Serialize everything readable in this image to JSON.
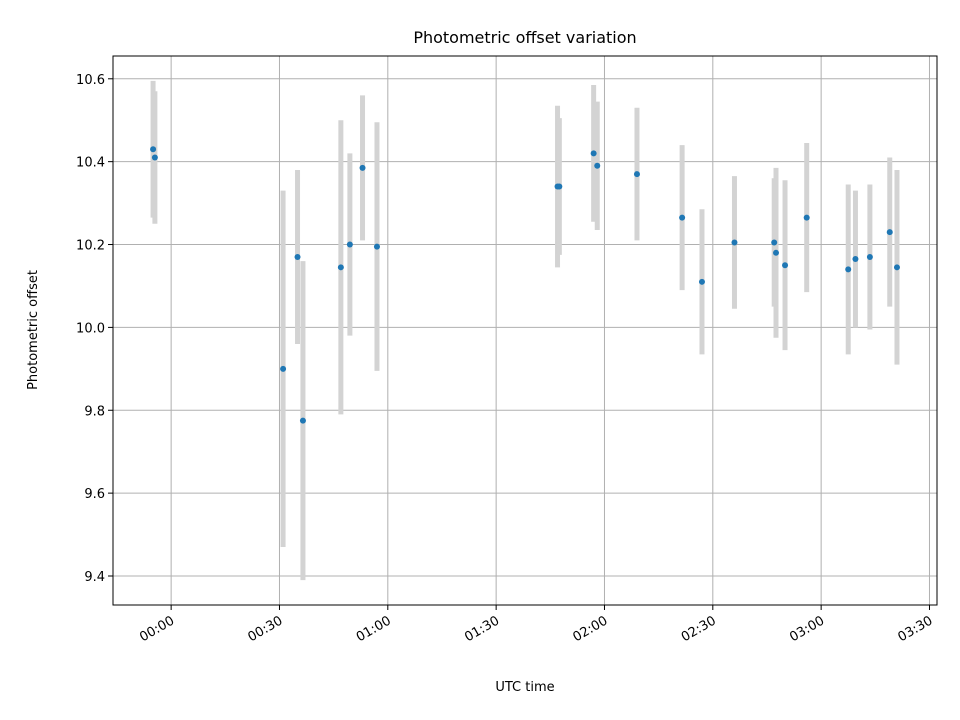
{
  "chart_data": {
    "type": "scatter",
    "title": "Photometric offset variation",
    "xlabel": "UTC time",
    "ylabel": "Photometric offset",
    "x_ticks": [
      "00:00",
      "00:30",
      "01:00",
      "01:30",
      "02:00",
      "02:30",
      "03:00",
      "03:30"
    ],
    "y_ticks": [
      "9.4",
      "9.6",
      "9.8",
      "10.0",
      "10.2",
      "10.4",
      "10.6"
    ],
    "y_tick_values": [
      9.4,
      9.6,
      9.8,
      10.0,
      10.2,
      10.4,
      10.6
    ],
    "xlim": [
      "23:43:54",
      "03:32:05"
    ],
    "ylim": [
      9.33,
      10.655
    ],
    "grid": true,
    "colors": {
      "point": "#1f77b4",
      "errorbar": "#d3d3d3",
      "grid": "#b0b0b0"
    },
    "points": [
      {
        "time": "23:55:00",
        "y": 10.43,
        "yerr": 0.165
      },
      {
        "time": "23:55:30",
        "y": 10.41,
        "yerr": 0.16
      },
      {
        "time": "00:31:00",
        "y": 9.9,
        "yerr": 0.43
      },
      {
        "time": "00:35:00",
        "y": 10.17,
        "yerr": 0.21
      },
      {
        "time": "00:36:30",
        "y": 9.775,
        "yerr": 0.385
      },
      {
        "time": "00:47:00",
        "y": 10.145,
        "yerr": 0.355
      },
      {
        "time": "00:49:30",
        "y": 10.2,
        "yerr": 0.22
      },
      {
        "time": "00:53:00",
        "y": 10.385,
        "yerr": 0.175
      },
      {
        "time": "00:57:00",
        "y": 10.195,
        "yerr": 0.3
      },
      {
        "time": "01:47:00",
        "y": 10.34,
        "yerr": 0.195
      },
      {
        "time": "01:47:30",
        "y": 10.34,
        "yerr": 0.165
      },
      {
        "time": "01:57:00",
        "y": 10.42,
        "yerr": 0.165
      },
      {
        "time": "01:58:00",
        "y": 10.39,
        "yerr": 0.155
      },
      {
        "time": "02:09:00",
        "y": 10.37,
        "yerr": 0.16
      },
      {
        "time": "02:21:30",
        "y": 10.265,
        "yerr": 0.175
      },
      {
        "time": "02:27:00",
        "y": 10.11,
        "yerr": 0.175
      },
      {
        "time": "02:36:00",
        "y": 10.205,
        "yerr": 0.16
      },
      {
        "time": "02:47:00",
        "y": 10.205,
        "yerr": 0.155
      },
      {
        "time": "02:47:30",
        "y": 10.18,
        "yerr": 0.205
      },
      {
        "time": "02:50:00",
        "y": 10.15,
        "yerr": 0.205
      },
      {
        "time": "02:56:00",
        "y": 10.265,
        "yerr": 0.18
      },
      {
        "time": "03:07:30",
        "y": 10.14,
        "yerr": 0.205
      },
      {
        "time": "03:09:30",
        "y": 10.165,
        "yerr": 0.165
      },
      {
        "time": "03:13:30",
        "y": 10.17,
        "yerr": 0.175
      },
      {
        "time": "03:19:00",
        "y": 10.23,
        "yerr": 0.18
      },
      {
        "time": "03:21:00",
        "y": 10.145,
        "yerr": 0.235
      }
    ]
  }
}
